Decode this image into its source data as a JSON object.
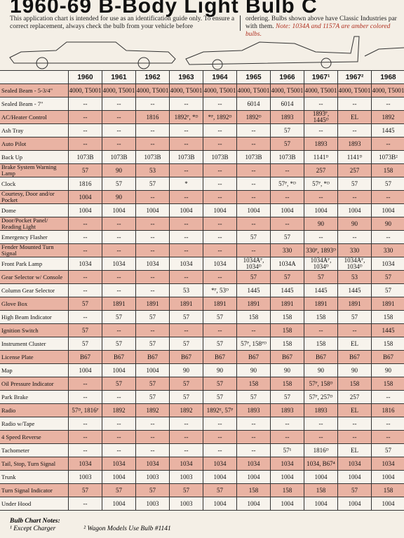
{
  "header": {
    "title": "1960-69 B-Body Light Bulb C",
    "intro_left": "This application chart is intended for use as an identification guide only. To ensure a correct replacement, always check the bulb from your vehicle before",
    "intro_right": "ordering. Bulbs shown above have Classic Industries par with them.",
    "intro_note": "Note: 1034A and 1157A are amber colored bulbs."
  },
  "table": {
    "columns": [
      "1960",
      "1961",
      "1962",
      "1963",
      "1964",
      "1965",
      "1966",
      "1967¹",
      "1967²",
      "1968"
    ],
    "rows": [
      {
        "label": "Sealed Beam - 5-3/4\"",
        "cells": [
          "4000, T5001",
          "4000, T5001",
          "4000, T5001",
          "4000, T5001",
          "4000, T5001",
          "4000, T5001",
          "4000, T5001",
          "4000, T5001",
          "4000, T5001",
          "4000, T5001"
        ]
      },
      {
        "label": "Sealed Beam - 7\"",
        "cells": [
          "--",
          "--",
          "--",
          "--",
          "--",
          "6014",
          "6014",
          "--",
          "--",
          "--"
        ]
      },
      {
        "label": "AC/Heater Control",
        "cells": [
          "--",
          "--",
          "1816",
          "1892ᴾ, *ᴰ",
          "*ᴾ, 1892ᴰ",
          "1892ᴰ",
          "1893",
          "1893ᴾ, 1445ᴰ",
          "EL",
          "1892"
        ]
      },
      {
        "label": "Ash Tray",
        "cells": [
          "--",
          "--",
          "--",
          "--",
          "--",
          "--",
          "57",
          "--",
          "--",
          "1445"
        ]
      },
      {
        "label": "Auto Pilot",
        "cells": [
          "--",
          "--",
          "--",
          "--",
          "--",
          "--",
          "57",
          "1893",
          "1893",
          "--"
        ]
      },
      {
        "label": "Back Up",
        "cells": [
          "1073B",
          "1073B",
          "1073B",
          "1073B",
          "1073B",
          "1073B",
          "1073B",
          "1141ᴰ",
          "1141ᴰ",
          "1073B²"
        ]
      },
      {
        "label": "Brake System Warning Lamp",
        "cells": [
          "57",
          "90",
          "53",
          "--",
          "--",
          "--",
          "--",
          "257",
          "257",
          "158"
        ]
      },
      {
        "label": "Clock",
        "cells": [
          "1816",
          "57",
          "57",
          "*",
          "--",
          "--",
          "57ᴾ, *ᴰ",
          "57ᴾ, *ᴰ",
          "57",
          "57"
        ]
      },
      {
        "label": "Courtesy, Door and/or Pocket",
        "cells": [
          "1004",
          "90",
          "--",
          "--",
          "--",
          "--",
          "--",
          "--",
          "--",
          "--"
        ]
      },
      {
        "label": "Dome",
        "cells": [
          "1004",
          "1004",
          "1004",
          "1004",
          "1004",
          "1004",
          "1004",
          "1004",
          "1004",
          "1004"
        ]
      },
      {
        "label": "Door/Pocket Panel/ Reading Light",
        "cells": [
          "--",
          "--",
          "--",
          "--",
          "--",
          "--",
          "--",
          "90",
          "90",
          "90"
        ]
      },
      {
        "label": "Emergency Flasher",
        "cells": [
          "--",
          "--",
          "--",
          "--",
          "--",
          "57",
          "57",
          "--",
          "--",
          "--"
        ]
      },
      {
        "label": "Fender Mounted Turn Signal",
        "cells": [
          "--",
          "--",
          "--",
          "--",
          "--",
          "--",
          "330",
          "330ᴾ, 1893ᴰ",
          "330",
          "330"
        ]
      },
      {
        "label": "Front Park Lamp",
        "cells": [
          "1034",
          "1034",
          "1034",
          "1034",
          "1034",
          "1034Aᴾ, 1034ᴰ",
          "1034A",
          "1034Aᴾ, 1034ᴰ",
          "1034Aᴾ, 1034ᴰ",
          "1034"
        ]
      },
      {
        "label": "Gear Selector w/ Console",
        "cells": [
          "--",
          "--",
          "--",
          "--",
          "--",
          "57",
          "57",
          "57",
          "53",
          "57"
        ]
      },
      {
        "label": "Column Gear Selector",
        "cells": [
          "--",
          "--",
          "--",
          "53",
          "*ᴾ, 53ᴰ",
          "1445",
          "1445",
          "1445",
          "1445",
          "57"
        ]
      },
      {
        "label": "Glove Box",
        "cells": [
          "57",
          "1891",
          "1891",
          "1891",
          "1891",
          "1891",
          "1891",
          "1891",
          "1891",
          "1891"
        ]
      },
      {
        "label": "High Beam Indicator",
        "cells": [
          "--",
          "57",
          "57",
          "57",
          "57",
          "158",
          "158",
          "158",
          "57",
          "158"
        ]
      },
      {
        "label": "Ignition Switch",
        "cells": [
          "57",
          "--",
          "--",
          "--",
          "--",
          "--",
          "158",
          "--",
          "--",
          "1445"
        ]
      },
      {
        "label": "Instrument Cluster",
        "cells": [
          "57",
          "57",
          "57",
          "57",
          "57",
          "57ᴾ, 158ᴾᴰ",
          "158",
          "158",
          "EL",
          "158"
        ]
      },
      {
        "label": "License Plate",
        "cells": [
          "B67",
          "B67",
          "B67",
          "B67",
          "B67",
          "B67",
          "B67",
          "B67",
          "B67",
          "B67"
        ]
      },
      {
        "label": "Map",
        "cells": [
          "1004",
          "1004",
          "1004",
          "90",
          "90",
          "90",
          "90",
          "90",
          "90",
          "90"
        ]
      },
      {
        "label": "Oil Pressure Indicator",
        "cells": [
          "--",
          "57",
          "57",
          "57",
          "57",
          "158",
          "158",
          "57ᴾ, 158ᴰ",
          "158",
          "158"
        ]
      },
      {
        "label": "Park Brake",
        "cells": [
          "--",
          "--",
          "57",
          "57",
          "57",
          "57",
          "57",
          "57ᴾ, 257ᴰ",
          "257",
          "--"
        ]
      },
      {
        "label": "Radio",
        "cells": [
          "57ᴰ, 1816ᴾ",
          "1892",
          "1892",
          "1892",
          "1892ᴱ, 57ᴾ",
          "1893",
          "1893",
          "1893",
          "EL",
          "1816"
        ]
      },
      {
        "label": "Radio w/Tape",
        "cells": [
          "--",
          "--",
          "--",
          "--",
          "--",
          "--",
          "--",
          "--",
          "--",
          "--"
        ]
      },
      {
        "label": "4 Speed Reverse",
        "cells": [
          "--",
          "--",
          "--",
          "--",
          "--",
          "--",
          "--",
          "--",
          "--",
          "--"
        ]
      },
      {
        "label": "Tachometer",
        "cells": [
          "--",
          "--",
          "--",
          "--",
          "--",
          "--",
          "57¹",
          "1816ᴰ",
          "EL",
          "57"
        ]
      },
      {
        "label": "Tail, Stop, Turn Signal",
        "cells": [
          "1034",
          "1034",
          "1034",
          "1034",
          "1034",
          "1034",
          "1034",
          "1034, B67⁴",
          "1034",
          "1034"
        ]
      },
      {
        "label": "Trunk",
        "cells": [
          "1003",
          "1004",
          "1003",
          "1003",
          "1004",
          "1004",
          "1004",
          "1004",
          "1004",
          "1004"
        ]
      },
      {
        "label": "Turn Signal Indicator",
        "cells": [
          "57",
          "57",
          "57",
          "57",
          "57",
          "158",
          "158",
          "158",
          "57",
          "158"
        ]
      },
      {
        "label": "Under Hood",
        "cells": [
          "--",
          "1004",
          "1003",
          "1003",
          "1004",
          "1004",
          "1004",
          "1004",
          "1004",
          "1004"
        ]
      }
    ]
  },
  "notes": {
    "title": "Bulb Chart Notes:",
    "items": [
      "¹ Except Charger",
      "² Wagon Models Use Bulb #1141"
    ]
  }
}
